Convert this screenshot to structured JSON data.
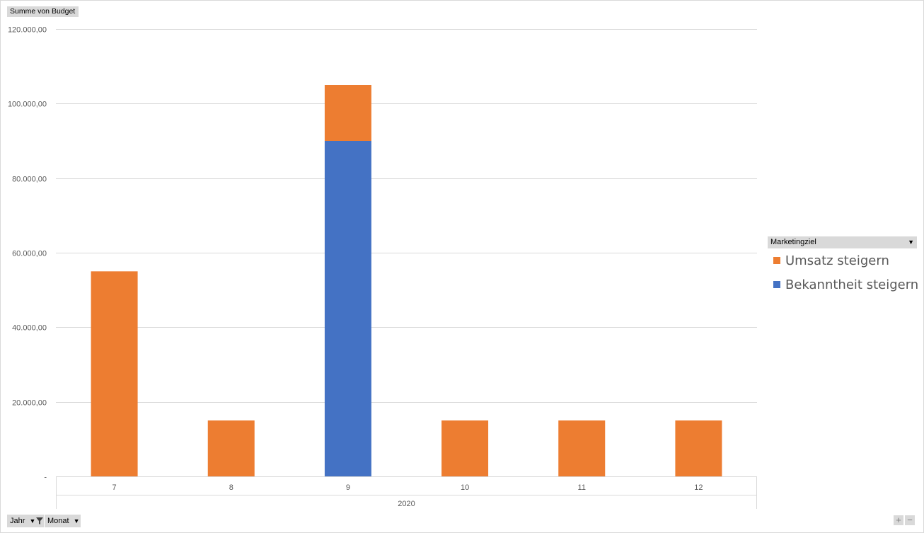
{
  "field_buttons": {
    "values_label": "Summe  von Budget",
    "legend_label": "Marketingziel",
    "axis_fields": [
      "Jahr",
      "Monat"
    ]
  },
  "colors": {
    "umsatz": "#ED7D31",
    "bekanntheit": "#4472C4",
    "gridline": "#d9d9d9",
    "axis_text": "#595959",
    "field_button_bg": "#d9d9d9"
  },
  "chart_data": {
    "type": "bar",
    "stacked": true,
    "categories": [
      "7",
      "8",
      "9",
      "10",
      "11",
      "12"
    ],
    "category_group": "2020",
    "series": [
      {
        "name": "Bekanntheit steigern",
        "color": "#4472C4",
        "values": [
          0,
          0,
          90000,
          0,
          0,
          0
        ]
      },
      {
        "name": "Umsatz steigern",
        "color": "#ED7D31",
        "values": [
          55000,
          15000,
          15000,
          15000,
          15000,
          15000
        ]
      }
    ],
    "y_ticks": [
      0,
      20000,
      40000,
      60000,
      80000,
      100000,
      120000
    ],
    "y_tick_labels": [
      "-",
      "20.000,00",
      "40.000,00",
      "60.000,00",
      "80.000,00",
      "100.000,00",
      "120.000,00"
    ],
    "ylim": [
      0,
      120000
    ],
    "grid": true,
    "legend_position": "right",
    "legend_order": [
      "Umsatz steigern",
      "Bekanntheit steigern"
    ]
  }
}
